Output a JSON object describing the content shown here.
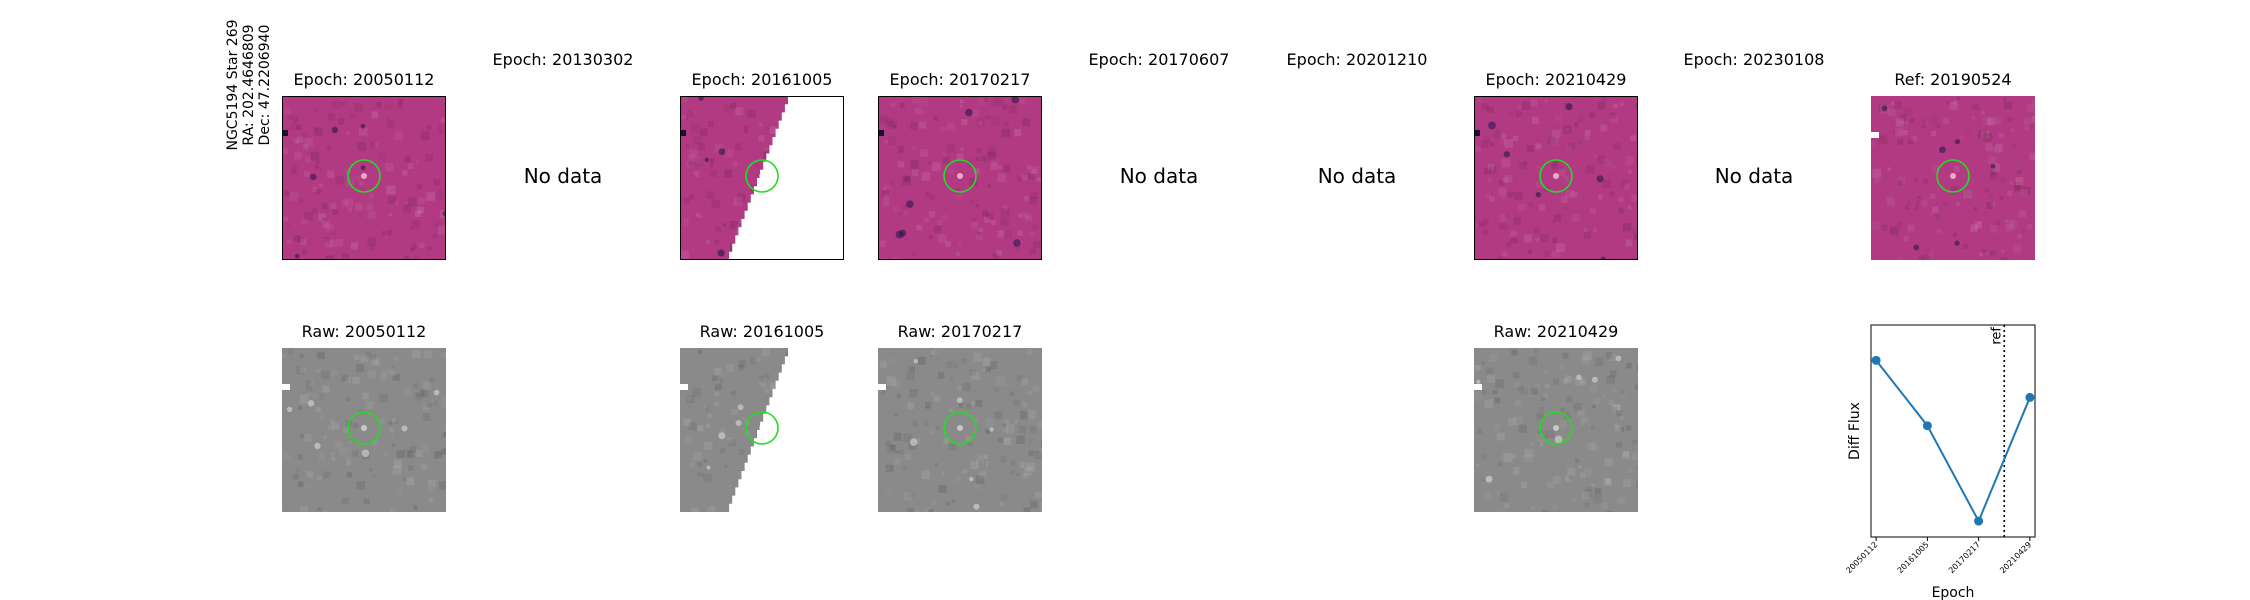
{
  "star_label": {
    "name": "NGC5194 Star 269",
    "ra": "RA: 202.4646809",
    "dec": "Dec: 47.2206940"
  },
  "no_data_text": "No data",
  "top_row": [
    {
      "title": "Epoch: 20050112",
      "status": "diff",
      "variant": "normal"
    },
    {
      "title": "Epoch: 20130302",
      "status": "nodata"
    },
    {
      "title": "Epoch: 20161005",
      "status": "diff",
      "variant": "partial"
    },
    {
      "title": "Epoch: 20170217",
      "status": "diff",
      "variant": "normal"
    },
    {
      "title": "Epoch: 20170607",
      "status": "nodata"
    },
    {
      "title": "Epoch: 20201210",
      "status": "nodata"
    },
    {
      "title": "Epoch: 20210429",
      "status": "diff",
      "variant": "normal"
    },
    {
      "title": "Epoch: 20230108",
      "status": "nodata"
    },
    {
      "title": "Ref: 20190524",
      "status": "ref"
    }
  ],
  "bottom_row": [
    {
      "title": "Raw: 20050112",
      "col": 0,
      "variant": "normal"
    },
    {
      "title": "Raw: 20161005",
      "col": 2,
      "variant": "partial"
    },
    {
      "title": "Raw: 20170217",
      "col": 3,
      "variant": "normal"
    },
    {
      "title": "Raw: 20210429",
      "col": 6,
      "variant": "normal"
    }
  ],
  "colors": {
    "diff_background": "#b13a82",
    "raw_background": "#8a8a8a",
    "circle": "#22dd22",
    "line": "#1f77b4",
    "ref_line": "#000000"
  },
  "chart_data": {
    "type": "line",
    "title": "",
    "xlabel": "Epoch",
    "ylabel": "Diff Flux",
    "categories": [
      "20050112",
      "20161005",
      "20170217",
      "20210429"
    ],
    "x_positions": [
      0,
      1,
      2,
      3
    ],
    "series": [
      {
        "values": [
          0.95,
          0.58,
          0.04,
          0.74
        ]
      }
    ],
    "ylim": [
      -0.05,
      1.15
    ],
    "ref_marker": {
      "label": "ref",
      "position": 2.5
    },
    "grid": false,
    "legend": "none"
  }
}
